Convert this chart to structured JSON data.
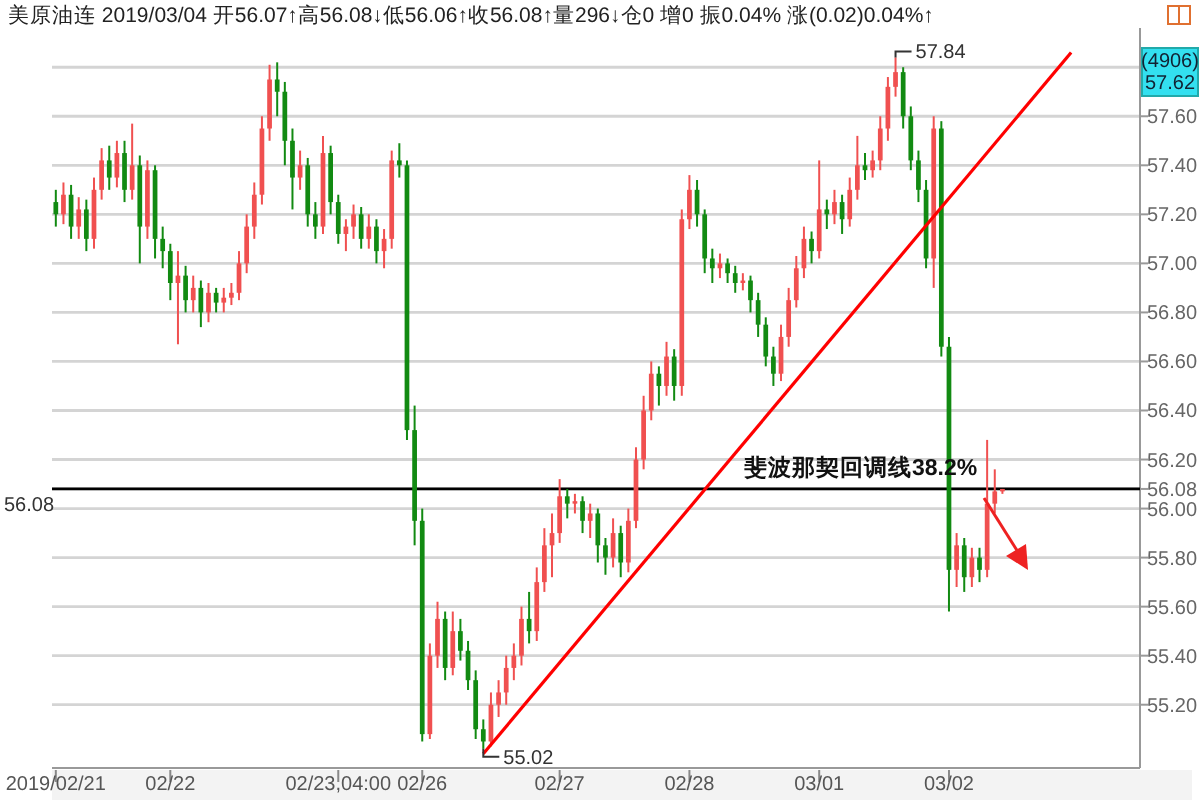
{
  "chart_data": {
    "type": "candlestick",
    "title": "美原油连 2019/03/04 开56.07↑高56.08↓低56.06↑收56.08↑量296↓仓0 增0 振0.04% 涨(0.02)0.04%↑",
    "categories": [
      "2019/02/21",
      null,
      null,
      null,
      null,
      null,
      null,
      null,
      null,
      null,
      null,
      null,
      null,
      null,
      null,
      "02/22",
      null,
      null,
      null,
      null,
      null,
      null,
      null,
      null,
      null,
      null,
      null,
      null,
      null,
      null,
      null,
      null,
      null,
      null,
      null,
      null,
      null,
      "02/23,04:00",
      null,
      null,
      null,
      null,
      null,
      null,
      null,
      null,
      null,
      null,
      "02/26",
      null,
      null,
      null,
      null,
      null,
      null,
      null,
      null,
      null,
      null,
      null,
      null,
      null,
      null,
      null,
      null,
      null,
      "02/27",
      null,
      null,
      null,
      null,
      null,
      null,
      null,
      null,
      null,
      null,
      null,
      null,
      null,
      null,
      null,
      null,
      "02/28",
      null,
      null,
      null,
      null,
      null,
      null,
      null,
      null,
      null,
      null,
      null,
      null,
      null,
      null,
      null,
      null,
      "03/01",
      null,
      null,
      null,
      null,
      null,
      null,
      null,
      null,
      null,
      null,
      null,
      null,
      null,
      null,
      null,
      null,
      "03/02",
      null,
      null,
      null,
      null,
      null,
      null,
      null,
      null,
      null,
      null,
      null,
      null,
      null,
      null,
      null,
      null,
      null,
      null,
      null,
      null,
      null,
      null,
      null,
      null
    ],
    "ohlc": [
      [
        57.25,
        57.3,
        57.15,
        57.2
      ],
      [
        57.2,
        57.33,
        57.16,
        57.28
      ],
      [
        57.28,
        57.32,
        57.1,
        57.15
      ],
      [
        57.15,
        57.27,
        57.1,
        57.22
      ],
      [
        57.22,
        57.26,
        57.05,
        57.1
      ],
      [
        57.1,
        57.35,
        57.06,
        57.3
      ],
      [
        57.3,
        57.47,
        57.26,
        57.42
      ],
      [
        57.42,
        57.48,
        57.3,
        57.35
      ],
      [
        57.35,
        57.5,
        57.31,
        57.45
      ],
      [
        57.45,
        57.5,
        57.25,
        57.3
      ],
      [
        57.3,
        57.57,
        57.26,
        57.4
      ],
      [
        57.4,
        57.44,
        57.0,
        57.15
      ],
      [
        57.15,
        57.42,
        57.1,
        57.38
      ],
      [
        57.38,
        57.4,
        57.02,
        57.1
      ],
      [
        57.1,
        57.15,
        56.98,
        57.05
      ],
      [
        57.05,
        57.08,
        56.85,
        56.92
      ],
      [
        56.92,
        57.05,
        56.67,
        56.95
      ],
      [
        56.95,
        56.99,
        56.8,
        56.85
      ],
      [
        56.85,
        56.95,
        56.8,
        56.9
      ],
      [
        56.9,
        56.93,
        56.74,
        56.8
      ],
      [
        56.8,
        56.92,
        56.76,
        56.88
      ],
      [
        56.88,
        56.9,
        56.8,
        56.84
      ],
      [
        56.84,
        56.9,
        56.8,
        56.86
      ],
      [
        56.86,
        56.92,
        56.83,
        56.88
      ],
      [
        56.88,
        57.05,
        56.85,
        57.0
      ],
      [
        57.0,
        57.2,
        56.96,
        57.15
      ],
      [
        57.15,
        57.33,
        57.1,
        57.28
      ],
      [
        57.28,
        57.6,
        57.24,
        57.55
      ],
      [
        57.55,
        57.81,
        57.5,
        57.75
      ],
      [
        57.75,
        57.82,
        57.6,
        57.7
      ],
      [
        57.7,
        57.74,
        57.4,
        57.5
      ],
      [
        57.5,
        57.55,
        57.22,
        57.35
      ],
      [
        57.35,
        57.46,
        57.3,
        57.4
      ],
      [
        57.4,
        57.43,
        57.15,
        57.2
      ],
      [
        57.2,
        57.25,
        57.1,
        57.15
      ],
      [
        57.15,
        57.52,
        57.12,
        57.45
      ],
      [
        57.45,
        57.48,
        57.2,
        57.25
      ],
      [
        57.25,
        57.28,
        57.08,
        57.12
      ],
      [
        57.12,
        57.18,
        57.05,
        57.15
      ],
      [
        57.15,
        57.24,
        57.1,
        57.2
      ],
      [
        57.2,
        57.23,
        57.06,
        57.1
      ],
      [
        57.1,
        57.2,
        57.06,
        57.15
      ],
      [
        57.15,
        57.18,
        57.0,
        57.05
      ],
      [
        57.05,
        57.14,
        56.98,
        57.1
      ],
      [
        57.1,
        57.46,
        57.06,
        57.42
      ],
      [
        57.42,
        57.49,
        57.35,
        57.4
      ],
      [
        57.4,
        57.42,
        56.28,
        56.32
      ],
      [
        56.32,
        56.42,
        55.85,
        55.95
      ],
      [
        55.95,
        56.0,
        55.05,
        55.08
      ],
      [
        55.08,
        55.45,
        55.06,
        55.4
      ],
      [
        55.4,
        55.62,
        55.35,
        55.55
      ],
      [
        55.55,
        55.58,
        55.3,
        55.35
      ],
      [
        55.35,
        55.58,
        55.32,
        55.5
      ],
      [
        55.5,
        55.55,
        55.38,
        55.42
      ],
      [
        55.42,
        55.46,
        55.26,
        55.3
      ],
      [
        55.3,
        55.34,
        55.06,
        55.1
      ],
      [
        55.1,
        55.14,
        55.02,
        55.05
      ],
      [
        55.05,
        55.25,
        55.03,
        55.2
      ],
      [
        55.2,
        55.3,
        55.15,
        55.25
      ],
      [
        55.25,
        55.4,
        55.2,
        55.35
      ],
      [
        55.35,
        55.45,
        55.3,
        55.4
      ],
      [
        55.4,
        55.6,
        55.36,
        55.55
      ],
      [
        55.55,
        55.66,
        55.45,
        55.5
      ],
      [
        55.5,
        55.76,
        55.46,
        55.7
      ],
      [
        55.7,
        55.92,
        55.66,
        55.85
      ],
      [
        55.85,
        55.98,
        55.72,
        55.9
      ],
      [
        55.9,
        56.12,
        55.86,
        56.05
      ],
      [
        56.05,
        56.08,
        55.96,
        56.02
      ],
      [
        56.02,
        56.06,
        55.98,
        56.03
      ],
      [
        56.03,
        56.05,
        55.9,
        55.95
      ],
      [
        55.95,
        56.02,
        55.88,
        55.98
      ],
      [
        55.98,
        56.0,
        55.78,
        55.85
      ],
      [
        55.85,
        55.88,
        55.73,
        55.8
      ],
      [
        55.8,
        55.96,
        55.76,
        55.9
      ],
      [
        55.9,
        55.93,
        55.72,
        55.78
      ],
      [
        55.78,
        56.0,
        55.74,
        55.95
      ],
      [
        55.95,
        56.25,
        55.92,
        56.2
      ],
      [
        56.2,
        56.46,
        56.16,
        56.4
      ],
      [
        56.4,
        56.6,
        56.36,
        56.55
      ],
      [
        56.55,
        56.58,
        56.42,
        56.5
      ],
      [
        56.5,
        56.68,
        56.46,
        56.62
      ],
      [
        56.62,
        56.65,
        56.44,
        56.5
      ],
      [
        56.5,
        57.22,
        56.46,
        57.18
      ],
      [
        57.18,
        57.36,
        57.14,
        57.3
      ],
      [
        57.3,
        57.34,
        57.15,
        57.2
      ],
      [
        57.2,
        57.22,
        56.96,
        57.02
      ],
      [
        57.02,
        57.06,
        56.92,
        56.98
      ],
      [
        56.98,
        57.04,
        56.94,
        57.0
      ],
      [
        57.0,
        57.02,
        56.92,
        56.96
      ],
      [
        56.96,
        56.99,
        56.88,
        56.92
      ],
      [
        56.92,
        56.96,
        56.89,
        56.93
      ],
      [
        56.93,
        56.95,
        56.8,
        56.85
      ],
      [
        56.85,
        56.88,
        56.7,
        56.75
      ],
      [
        56.75,
        56.78,
        56.58,
        56.62
      ],
      [
        56.62,
        56.66,
        56.5,
        56.55
      ],
      [
        56.55,
        56.75,
        56.52,
        56.7
      ],
      [
        56.7,
        56.9,
        56.66,
        56.85
      ],
      [
        56.85,
        57.03,
        56.82,
        56.98
      ],
      [
        56.98,
        57.15,
        56.94,
        57.1
      ],
      [
        57.1,
        57.13,
        57.0,
        57.05
      ],
      [
        57.05,
        57.42,
        57.02,
        57.22
      ],
      [
        57.22,
        57.26,
        57.14,
        57.2
      ],
      [
        57.2,
        57.3,
        57.16,
        57.25
      ],
      [
        57.25,
        57.28,
        57.12,
        57.18
      ],
      [
        57.18,
        57.35,
        57.15,
        57.3
      ],
      [
        57.3,
        57.52,
        57.26,
        57.4
      ],
      [
        57.4,
        57.45,
        57.34,
        57.38
      ],
      [
        57.38,
        57.46,
        57.35,
        57.42
      ],
      [
        57.42,
        57.6,
        57.38,
        57.55
      ],
      [
        57.55,
        57.76,
        57.5,
        57.72
      ],
      [
        57.72,
        57.84,
        57.68,
        57.78
      ],
      [
        57.78,
        57.8,
        57.55,
        57.6
      ],
      [
        57.6,
        57.64,
        57.38,
        57.42
      ],
      [
        57.42,
        57.46,
        57.25,
        57.3
      ],
      [
        57.3,
        57.34,
        56.98,
        57.02
      ],
      [
        57.02,
        57.6,
        56.9,
        57.55
      ],
      [
        57.55,
        57.58,
        56.62,
        56.66
      ],
      [
        56.66,
        56.7,
        55.58,
        55.75
      ],
      [
        55.75,
        55.9,
        55.68,
        55.85
      ],
      [
        55.85,
        55.88,
        55.66,
        55.72
      ],
      [
        55.72,
        55.84,
        55.68,
        55.8
      ],
      [
        55.8,
        55.84,
        55.7,
        55.75
      ],
      [
        55.75,
        56.28,
        55.72,
        56.02
      ],
      [
        56.02,
        56.16,
        55.98,
        56.07
      ],
      [
        56.07,
        56.08,
        56.06,
        56.08
      ],
      null,
      null,
      null,
      null,
      null,
      null,
      null,
      null,
      null,
      null,
      null,
      null,
      null,
      null,
      null,
      null,
      null
    ],
    "series": [
      {
        "type": "line",
        "color": "#ff0000",
        "values": [
          null,
          null,
          null,
          null,
          null,
          null,
          null,
          null,
          null,
          null,
          null,
          null,
          null,
          null,
          null,
          null,
          null,
          null,
          null,
          null,
          null,
          null,
          null,
          null,
          null,
          null,
          null,
          null,
          null,
          null,
          null,
          null,
          null,
          null,
          null,
          null,
          null,
          null,
          null,
          null,
          null,
          null,
          null,
          null,
          null,
          null,
          null,
          null,
          null,
          null,
          null,
          null,
          null,
          null,
          null,
          null,
          55.0,
          null,
          null,
          null,
          null,
          null,
          null,
          null,
          null,
          null,
          null,
          null,
          null,
          null,
          null,
          null,
          null,
          null,
          null,
          null,
          null,
          null,
          null,
          null,
          null,
          null,
          null,
          null,
          null,
          null,
          null,
          null,
          null,
          null,
          null,
          null,
          null,
          null,
          null,
          null,
          null,
          null,
          null,
          null,
          null,
          null,
          null,
          null,
          null,
          null,
          null,
          null,
          null,
          null,
          null,
          null,
          null,
          null,
          null,
          null,
          null,
          null,
          null,
          null,
          null,
          null,
          null,
          null,
          null,
          null,
          null,
          null,
          null,
          null,
          null,
          null,
          null,
          57.86,
          null,
          null,
          null,
          null,
          null,
          null,
          null,
          null
        ]
      }
    ],
    "ylim": [
      54.95,
      57.96
    ],
    "yticks": [
      {
        "value": 55.2,
        "label": "55.20"
      },
      {
        "value": 55.4,
        "label": "55.40"
      },
      {
        "value": 55.6,
        "label": "55.60"
      },
      {
        "value": 55.8,
        "label": "55.80"
      },
      {
        "value": 56.0,
        "label": "56.00"
      },
      {
        "value": 56.08,
        "label": "56.08"
      },
      {
        "value": 56.2,
        "label": "56.20"
      },
      {
        "value": 56.4,
        "label": "56.40"
      },
      {
        "value": 56.6,
        "label": "56.60"
      },
      {
        "value": 56.8,
        "label": "56.80"
      },
      {
        "value": 57.0,
        "label": "57.00"
      },
      {
        "value": 57.2,
        "label": "57.20"
      },
      {
        "value": 57.4,
        "label": "57.40"
      },
      {
        "value": 57.6,
        "label": "57.60"
      },
      {
        "value": 57.8,
        "label": null
      }
    ],
    "grid": "y",
    "ref_lines": [
      {
        "axis": "y",
        "value": 56.08,
        "label": "56.08",
        "color": "#000000"
      }
    ],
    "annotations": [
      "57.84",
      "55.02",
      "斐波那契回调线38.2%",
      "(4906)",
      "57.62"
    ]
  }
}
